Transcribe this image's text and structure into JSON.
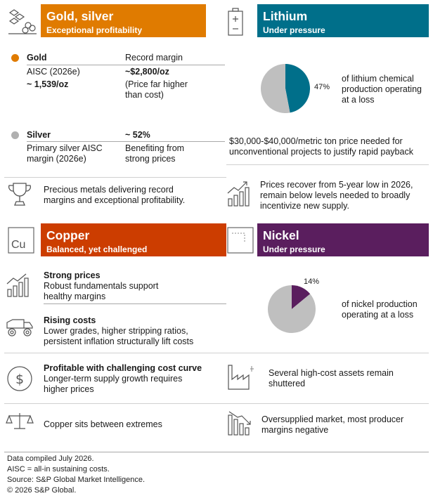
{
  "colors": {
    "gold": "#e07b00",
    "lithium": "#006f8a",
    "copper": "#cc3d00",
    "nickel": "#5a1e5e",
    "pie_grey": "#bfbfbf",
    "silver_dot": "#b0b0b0"
  },
  "gold_silver": {
    "title": "Gold, silver",
    "subtitle": "Exceptional profitability",
    "icon": "gold-bars-icon",
    "gold": {
      "label": "Gold",
      "aisc_label": "AISC (2026e)",
      "aisc_value": "~ 1,539/oz",
      "margin_label": "Record margin",
      "margin_value": "~$2,800/oz",
      "note_line1": "(Price far higher",
      "note_line2": "than cost)"
    },
    "silver": {
      "label": "Silver",
      "aisc_line1": "Primary silver AISC",
      "aisc_line2": "margin (2026e)",
      "margin_value": "~ 52%",
      "note_line1": "Benefiting from",
      "note_line2": "strong prices"
    },
    "summary_icon": "trophy-icon",
    "summary_line1": "Precious metals delivering record",
    "summary_line2": "margins and exceptional profitability."
  },
  "lithium": {
    "title": "Lithium",
    "subtitle": "Under pressure",
    "icon": "battery-icon",
    "pie_label": "47%",
    "desc_line1": "of lithium chemical",
    "desc_line2": "production operating",
    "desc_line3": "at a loss",
    "price_line1": "$30,000-$40,000/metric ton price needed for",
    "price_line2": "unconventional projects to justify rapid payback",
    "summary_icon": "rising-bars-icon",
    "summary_line1": "Prices recover from 5-year low in 2026,",
    "summary_line2": "remain below levels needed to broadly",
    "summary_line3": "incentivize new supply."
  },
  "copper": {
    "title": "Copper",
    "subtitle": "Balanced, yet challenged",
    "symbol": "Cu",
    "items": [
      {
        "icon": "rising-bars-icon",
        "title": "Strong prices",
        "line1": "Robust fundamentals support",
        "line2": "healthy margins"
      },
      {
        "icon": "mining-truck-icon",
        "title": "Rising costs",
        "line1": "Lower grades, higher stripping ratios,",
        "line2": "persistent inflation structurally lift costs"
      },
      {
        "icon": "dollar-coin-icon",
        "title": "Profitable with challenging cost curve",
        "line1": "Longer-term supply growth requires",
        "line2": "higher prices"
      },
      {
        "icon": "balance-scale-icon",
        "title": "",
        "line1": "Copper sits between extremes",
        "line2": ""
      }
    ]
  },
  "nickel": {
    "title": "Nickel",
    "subtitle": "Under pressure",
    "icon": "nickel-element-icon",
    "pie_label": "14%",
    "desc_line1": "of nickel production",
    "desc_line2": "operating at a loss",
    "items": [
      {
        "icon": "factory-icon",
        "line1": "Several high-cost assets remain",
        "line2": "shuttered"
      },
      {
        "icon": "falling-bars-icon",
        "line1": "Oversupplied market, most producer",
        "line2": "margins negative"
      }
    ]
  },
  "chart_data": [
    {
      "type": "pie",
      "title": "",
      "slices": [
        {
          "label": "47%",
          "value": 47,
          "color": "#006f8a"
        },
        {
          "label": "",
          "value": 53,
          "color": "#bfbfbf"
        }
      ]
    },
    {
      "type": "pie",
      "title": "",
      "slices": [
        {
          "label": "14%",
          "value": 14,
          "color": "#5a1e5e"
        },
        {
          "label": "",
          "value": 86,
          "color": "#bfbfbf"
        }
      ]
    }
  ],
  "footer": {
    "line1": "Data compiled July 2026.",
    "line2": "AISC = all-in sustaining costs.",
    "line3": "Source: S&P Global Market Intelligence.",
    "line4": "© 2026 S&P Global."
  }
}
